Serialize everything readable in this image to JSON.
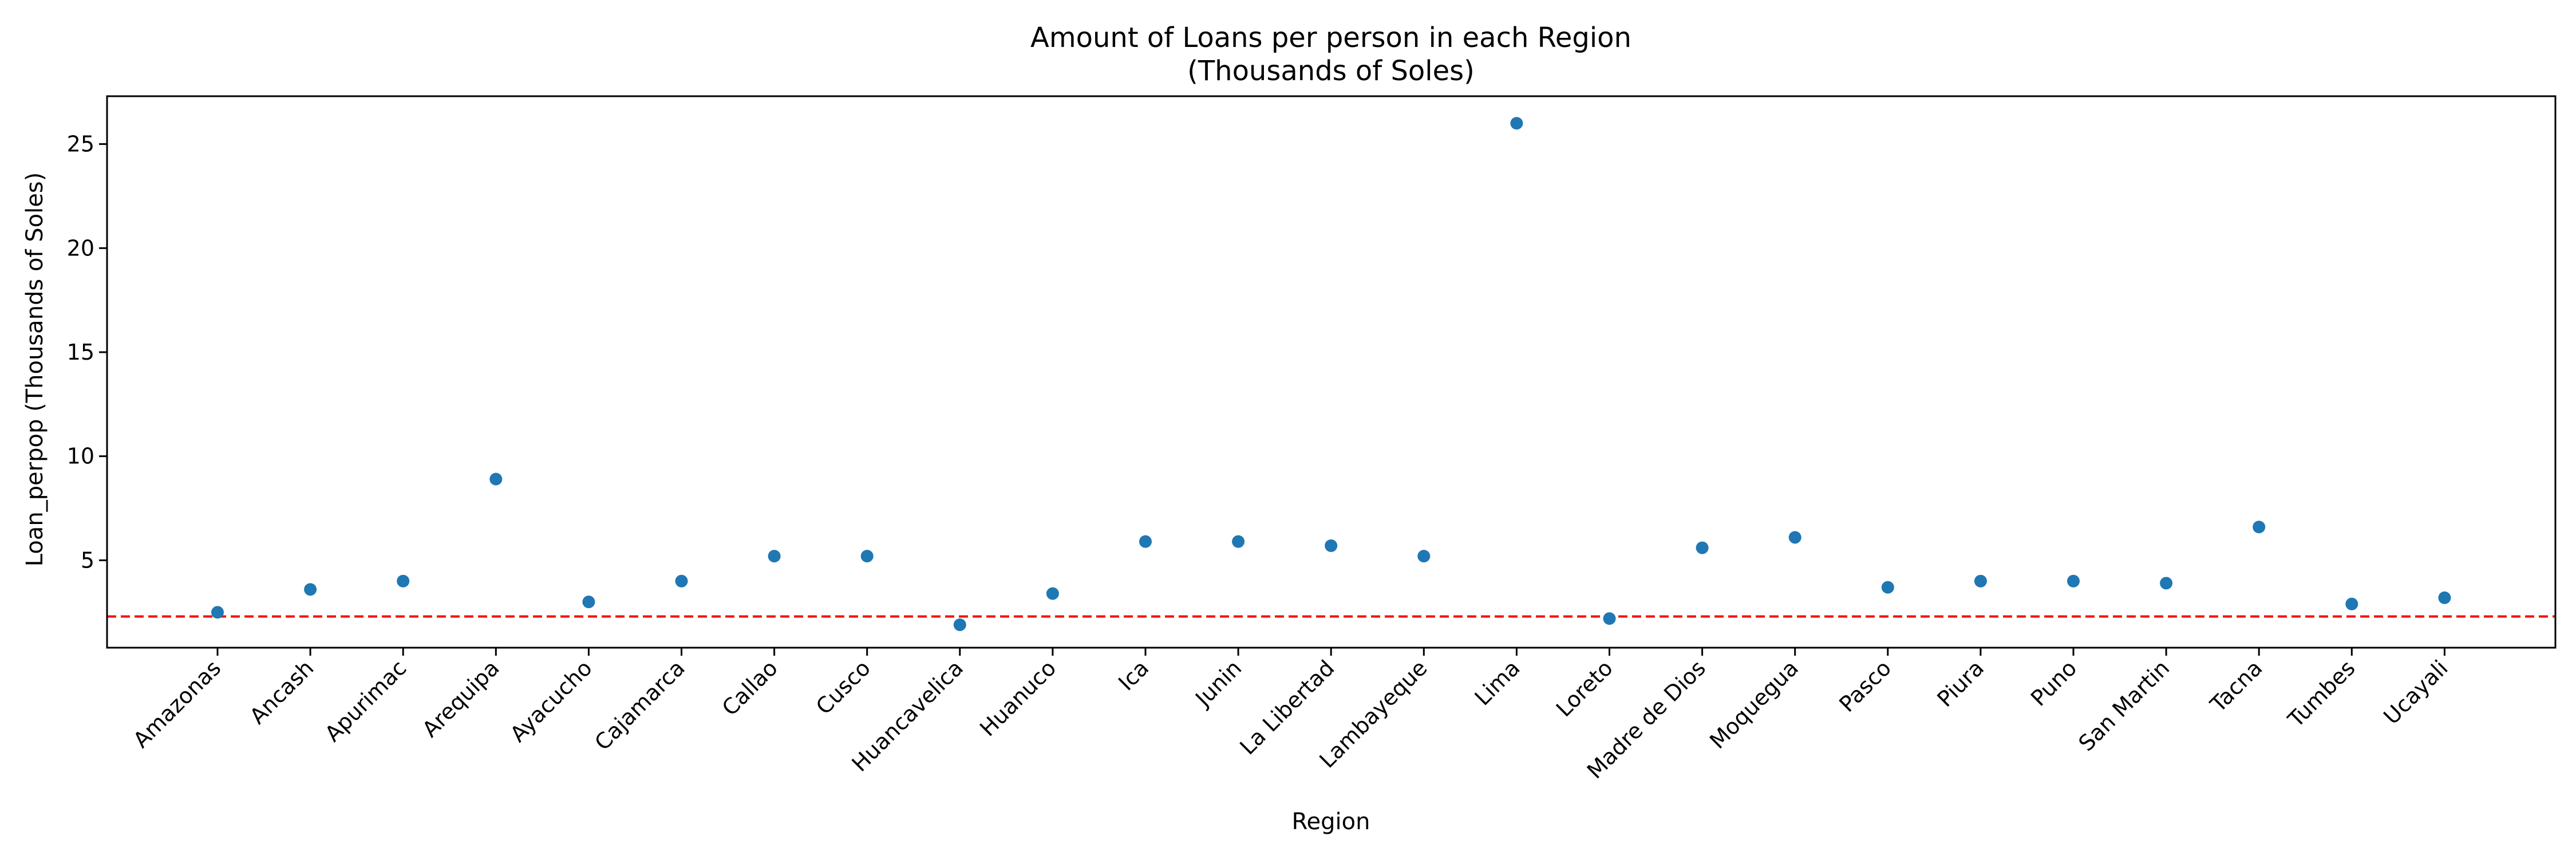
{
  "chart_data": {
    "type": "scatter",
    "title_line1": "Amount of Loans per person in each Region",
    "title_line2": "(Thousands of Soles)",
    "xlabel": "Region",
    "ylabel": "Loan_perpop (Thousands of Soles)",
    "categories": [
      "Amazonas",
      "Ancash",
      "Apurimac",
      "Arequipa",
      "Ayacucho",
      "Cajamarca",
      "Callao",
      "Cusco",
      "Huancavelica",
      "Huanuco",
      "Ica",
      "Junin",
      "La Libertad",
      "Lambayeque",
      "Lima",
      "Loreto",
      "Madre de Dios",
      "Moquegua",
      "Pasco",
      "Piura",
      "Puno",
      "San Martin",
      "Tacna",
      "Tumbes",
      "Ucayali"
    ],
    "values": [
      2.5,
      3.6,
      4.0,
      8.9,
      3.0,
      4.0,
      5.2,
      5.2,
      1.9,
      3.4,
      5.9,
      5.9,
      5.7,
      5.2,
      26.0,
      2.2,
      5.6,
      6.1,
      3.7,
      4.0,
      4.0,
      3.9,
      6.6,
      2.9,
      3.2
    ],
    "yticks": [
      5,
      10,
      15,
      20,
      25
    ],
    "ylim": [
      0.8,
      27.3
    ],
    "reference_line": {
      "y": 2.3,
      "color": "#ff0000",
      "style": "dashed"
    },
    "marker_color": "#1f77b4",
    "grid": false,
    "legend": "none"
  }
}
